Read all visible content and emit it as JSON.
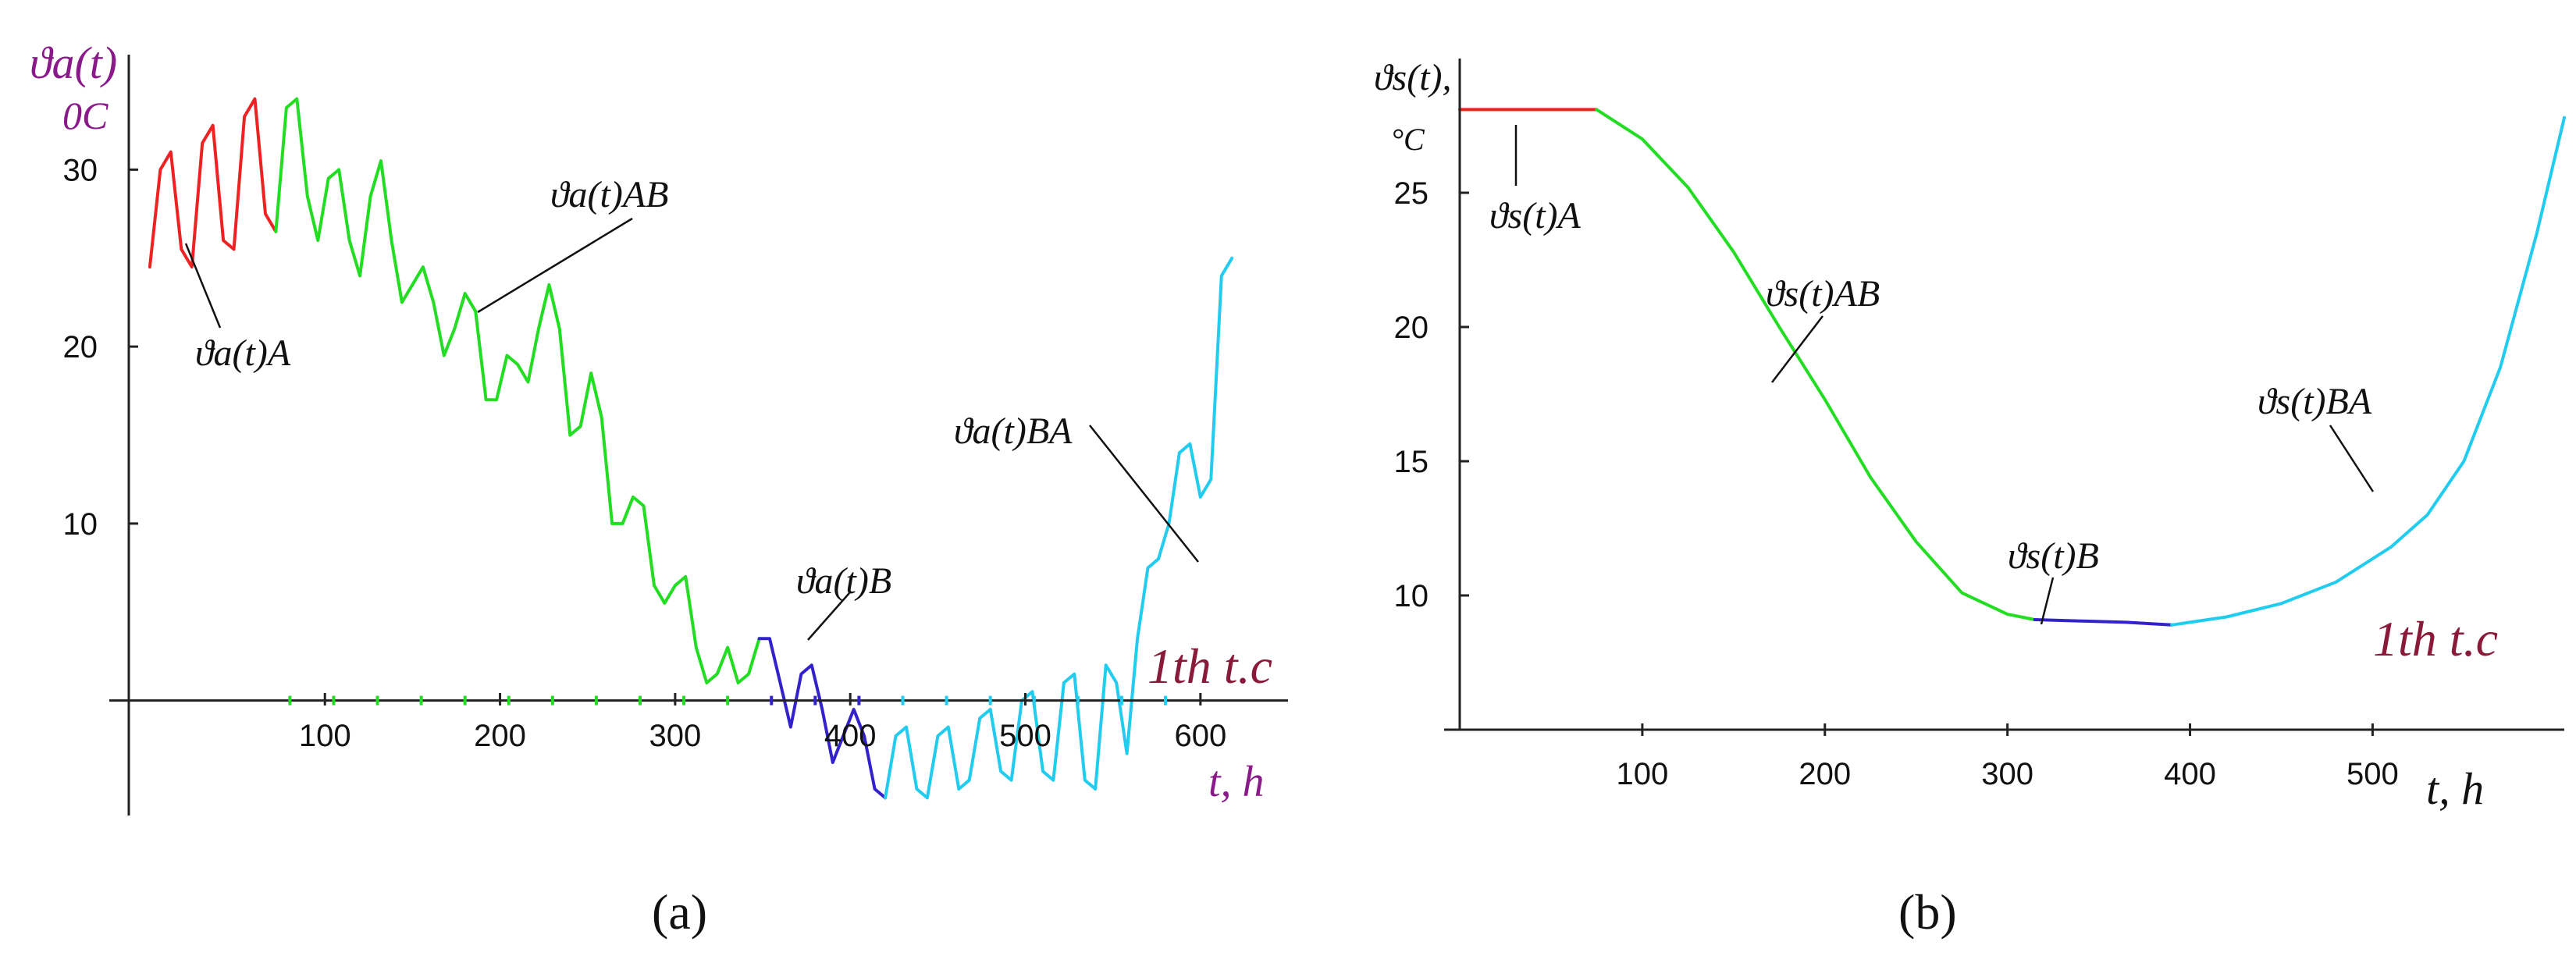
{
  "colors": {
    "A": "#ee2222",
    "AB": "#22dd22",
    "B": "#3322cc",
    "BA": "#22ccee",
    "magenta_label": "#8a1a8a",
    "cycle_label": "#8a1a3a",
    "axis": "#222222"
  },
  "chart_data": [
    {
      "panel_caption": "(a)",
      "type": "line",
      "ylabel_main": "ϑa(t)",
      "ylabel_unit": "0C",
      "xlabel": "t, h",
      "annotation_cycle": "1th t.c",
      "xlim": [
        -12,
        650
      ],
      "ylim": [
        -6.5,
        36.5
      ],
      "x_ticks": [
        100,
        200,
        300,
        400,
        500,
        600
      ],
      "y_ticks": [
        10,
        20,
        30
      ],
      "curve_labels": {
        "A": "ϑa(t)A",
        "AB": "ϑa(t)AB",
        "B": "ϑa(t)B",
        "BA": "ϑa(t)BA"
      },
      "series": [
        {
          "key": "A",
          "name": "ϑa(t)A",
          "x": [
            0,
            6,
            12,
            18,
            24,
            30,
            36,
            42,
            48,
            54,
            60,
            66,
            72
          ],
          "y": [
            24.5,
            30.0,
            31.0,
            25.5,
            24.5,
            31.5,
            32.5,
            26.0,
            25.5,
            33.0,
            34.0,
            27.5,
            26.5
          ]
        },
        {
          "key": "AB",
          "name": "ϑa(t)AB",
          "x": [
            72,
            78,
            84,
            90,
            96,
            102,
            108,
            114,
            120,
            126,
            132,
            138,
            144,
            150,
            156,
            162,
            168,
            174,
            180,
            186,
            192,
            198,
            204,
            210,
            216,
            222,
            228,
            234,
            240,
            246,
            252,
            258,
            264,
            270,
            276,
            282,
            288,
            294,
            300,
            306,
            312,
            318,
            324,
            330,
            336,
            342,
            348
          ],
          "y": [
            26.5,
            33.5,
            34.0,
            28.5,
            26.0,
            29.5,
            30.0,
            26.0,
            24.0,
            28.5,
            30.5,
            26.0,
            22.5,
            23.5,
            24.5,
            22.5,
            19.5,
            21.0,
            23.0,
            22.0,
            17.0,
            17.0,
            19.5,
            19.0,
            18.0,
            21.0,
            23.5,
            21.0,
            15.0,
            15.5,
            18.5,
            16.0,
            10.0,
            10.0,
            11.5,
            11.0,
            6.5,
            5.5,
            6.5,
            7.0,
            3.0,
            1.0,
            1.5,
            3.0,
            1.0,
            1.5,
            3.5
          ]
        },
        {
          "key": "B",
          "name": "ϑa(t)B",
          "x": [
            348,
            354,
            360,
            366,
            372,
            378,
            384,
            390,
            396,
            402,
            408,
            414,
            420
          ],
          "y": [
            3.5,
            3.5,
            1.0,
            -1.5,
            1.5,
            2.0,
            -0.5,
            -3.5,
            -2.0,
            -0.5,
            -2.0,
            -5.0,
            -5.5
          ]
        },
        {
          "key": "BA",
          "name": "ϑa(t)BA",
          "x": [
            420,
            426,
            432,
            438,
            444,
            450,
            456,
            462,
            468,
            474,
            480,
            486,
            492,
            498,
            504,
            510,
            516,
            522,
            528,
            534,
            540,
            546,
            552,
            558,
            564,
            570,
            576,
            582,
            588,
            594,
            600,
            606,
            612,
            618
          ],
          "y": [
            -5.5,
            -2.0,
            -1.5,
            -5.0,
            -5.5,
            -2.0,
            -1.5,
            -5.0,
            -4.5,
            -1.0,
            -0.5,
            -4.0,
            -4.5,
            0.0,
            0.5,
            -4.0,
            -4.5,
            1.0,
            1.5,
            -4.5,
            -5.0,
            2.0,
            1.0,
            -3.0,
            3.5,
            7.5,
            8.0,
            10.0,
            14.0,
            14.5,
            11.5,
            12.5,
            24.0,
            25.0
          ]
        }
      ]
    },
    {
      "panel_caption": "(b)",
      "type": "line",
      "ylabel_main": "ϑs(t),",
      "ylabel_unit": "°C",
      "xlabel": "t, h",
      "annotation_cycle": "1th t.c",
      "xlim": [
        0,
        605
      ],
      "ylim": [
        5,
        30
      ],
      "x_ticks": [
        100,
        200,
        300,
        400,
        500
      ],
      "y_ticks": [
        10,
        15,
        20,
        25
      ],
      "curve_labels": {
        "A": "ϑs(t)A",
        "AB": "ϑs(t)AB",
        "B": "ϑs(t)B",
        "BA": "ϑs(t)BA"
      },
      "series": [
        {
          "key": "A",
          "name": "ϑs(t)A",
          "x": [
            0,
            25,
            50,
            75
          ],
          "y": [
            28.1,
            28.1,
            28.1,
            28.1
          ]
        },
        {
          "key": "AB",
          "name": "ϑs(t)AB",
          "x": [
            75,
            100,
            125,
            150,
            175,
            200,
            225,
            250,
            275,
            300,
            315
          ],
          "y": [
            28.1,
            27.0,
            25.2,
            22.8,
            20.0,
            17.3,
            14.4,
            12.0,
            10.1,
            9.3,
            9.1
          ]
        },
        {
          "key": "B",
          "name": "ϑs(t)B",
          "x": [
            315,
            340,
            365,
            390
          ],
          "y": [
            9.1,
            9.05,
            9.0,
            8.9
          ]
        },
        {
          "key": "BA",
          "name": "ϑs(t)BA",
          "x": [
            390,
            420,
            450,
            480,
            510,
            530,
            550,
            570,
            590,
            605
          ],
          "y": [
            8.9,
            9.2,
            9.7,
            10.5,
            11.8,
            13.0,
            15.0,
            18.5,
            23.5,
            27.8
          ]
        }
      ]
    }
  ]
}
